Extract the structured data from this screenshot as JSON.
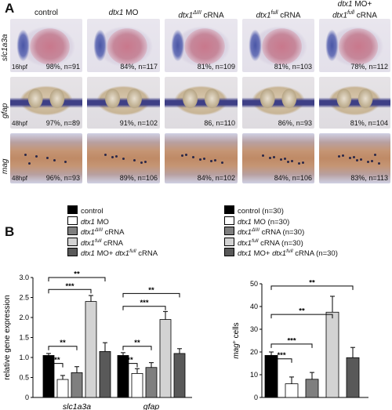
{
  "panel_a": {
    "label": "A",
    "columns": [
      {
        "parts": [
          {
            "t": "control",
            "i": false
          }
        ]
      },
      {
        "parts": [
          {
            "t": "dtx1",
            "i": true
          },
          {
            "t": " MO",
            "i": false
          }
        ]
      },
      {
        "parts": [
          {
            "t": "dtx1",
            "i": true
          },
          {
            "t": "ΔIII",
            "i": true,
            "sup": true
          },
          {
            "t": " cRNA",
            "i": false
          }
        ]
      },
      {
        "parts": [
          {
            "t": "dtx1",
            "i": true
          },
          {
            "t": "full",
            "i": true,
            "sup": true
          },
          {
            "t": " cRNA",
            "i": false
          }
        ]
      },
      {
        "parts": [
          {
            "t": "dtx1",
            "i": true
          },
          {
            "t": " MO+",
            "i": false
          },
          {
            "br": true
          },
          {
            "t": "dtx1",
            "i": true
          },
          {
            "t": "full",
            "i": true,
            "sup": true
          },
          {
            "t": " cRNA",
            "i": false
          }
        ]
      }
    ],
    "rows": [
      {
        "gene": "slc1a3a",
        "stage": "16hpf",
        "pcts": [
          "98%, n=91",
          "84%, n=117",
          "81%, n=109",
          "81%, n=103",
          "78%, n=112"
        ]
      },
      {
        "gene": "gfap",
        "stage": "48hpf",
        "pcts": [
          "97%, n=89",
          "91%, n=102",
          "86, n=110",
          "86%, n=93",
          "81%, n=104"
        ]
      },
      {
        "gene": "mag",
        "stage": "48hpf",
        "pcts": [
          "96%, n=93",
          "89%, n=106",
          "84%, n=102",
          "84%, n=106",
          "83%, n=113"
        ]
      }
    ]
  },
  "panel_b": {
    "label": "B",
    "legend_left": [
      {
        "parts": [
          {
            "t": "control"
          }
        ],
        "color": "#000000"
      },
      {
        "parts": [
          {
            "t": "dtx1",
            "i": true
          },
          {
            "t": " MO"
          }
        ],
        "color": "#ffffff"
      },
      {
        "parts": [
          {
            "t": "dtx1",
            "i": true
          },
          {
            "t": "ΔIII",
            "i": true,
            "sup": true
          },
          {
            "t": " cRNA"
          }
        ],
        "color": "#7f7f7f"
      },
      {
        "parts": [
          {
            "t": "dtx1",
            "i": true
          },
          {
            "t": "full",
            "i": true,
            "sup": true
          },
          {
            "t": " cRNA"
          }
        ],
        "color": "#d3d3d3"
      },
      {
        "parts": [
          {
            "t": "dtx1",
            "i": true
          },
          {
            "t": " MO+ "
          },
          {
            "t": "dtx1",
            "i": true
          },
          {
            "t": "full",
            "i": true,
            "sup": true
          },
          {
            "t": " cRNA"
          }
        ],
        "color": "#595959"
      }
    ],
    "legend_right": [
      {
        "parts": [
          {
            "t": "control (n=30)"
          }
        ],
        "color": "#000000"
      },
      {
        "parts": [
          {
            "t": "dtx1",
            "i": true
          },
          {
            "t": " MO (n=30)"
          }
        ],
        "color": "#ffffff"
      },
      {
        "parts": [
          {
            "t": "dtx1",
            "i": true
          },
          {
            "t": "ΔIII",
            "i": true,
            "sup": true
          },
          {
            "t": " cRNA (n=30)"
          }
        ],
        "color": "#7f7f7f"
      },
      {
        "parts": [
          {
            "t": "dtx1",
            "i": true
          },
          {
            "t": "full",
            "i": true,
            "sup": true
          },
          {
            "t": " cRNA (n=30)"
          }
        ],
        "color": "#d3d3d3"
      },
      {
        "parts": [
          {
            "t": "dtx1",
            "i": true
          },
          {
            "t": " MO+ "
          },
          {
            "t": "dtx1",
            "i": true
          },
          {
            "t": "full",
            "i": true,
            "sup": true
          },
          {
            "t": " cRNA (n=30)"
          }
        ],
        "color": "#595959"
      }
    ]
  },
  "chart_data": [
    {
      "type": "bar",
      "ylabel": "relative gene expression",
      "ylim": [
        0,
        3.0
      ],
      "yticks": [
        "0",
        "0.5",
        "1.0",
        "1.5",
        "2.0",
        "2.5",
        "3.0"
      ],
      "categories": [
        "slc1a3a",
        "gfap"
      ],
      "series": [
        {
          "color": "#000000",
          "values": [
            1.05,
            1.05
          ],
          "errors": [
            0.05,
            0.07
          ]
        },
        {
          "color": "#ffffff",
          "values": [
            0.45,
            0.6
          ],
          "errors": [
            0.1,
            0.12
          ]
        },
        {
          "color": "#7f7f7f",
          "values": [
            0.62,
            0.75
          ],
          "errors": [
            0.15,
            0.12
          ]
        },
        {
          "color": "#d3d3d3",
          "values": [
            2.4,
            1.95
          ],
          "errors": [
            0.15,
            0.2
          ]
        },
        {
          "color": "#595959",
          "values": [
            1.15,
            1.1
          ],
          "errors": [
            0.22,
            0.12
          ]
        }
      ],
      "significance": [
        {
          "cat": 0,
          "to": 1,
          "label": "***",
          "y": 0.85
        },
        {
          "cat": 0,
          "to": 2,
          "label": "**",
          "y": 1.28
        },
        {
          "cat": 0,
          "to": 3,
          "label": "***",
          "y": 2.7
        },
        {
          "cat": 0,
          "to": 4,
          "label": "**",
          "y": 3.0
        },
        {
          "cat": 1,
          "to": 1,
          "label": "**",
          "y": 0.85
        },
        {
          "cat": 1,
          "to": 2,
          "label": "**",
          "y": 1.28
        },
        {
          "cat": 1,
          "to": 3,
          "label": "***",
          "y": 2.28
        },
        {
          "cat": 1,
          "to": 4,
          "label": "**",
          "y": 2.6
        }
      ]
    },
    {
      "type": "bar",
      "ylabel": "mag+ cells",
      "ylabel_parts": [
        {
          "t": "mag",
          "i": true
        },
        {
          "t": "+",
          "sup": true
        },
        {
          "t": " cells"
        }
      ],
      "ylim": [
        0,
        50
      ],
      "yticks": [
        "0",
        "10",
        "20",
        "30",
        "40",
        "50"
      ],
      "categories": [
        ""
      ],
      "series": [
        {
          "color": "#000000",
          "values": [
            18.5
          ],
          "errors": [
            1.5
          ]
        },
        {
          "color": "#ffffff",
          "values": [
            6
          ],
          "errors": [
            3
          ]
        },
        {
          "color": "#7f7f7f",
          "values": [
            8
          ],
          "errors": [
            3
          ]
        },
        {
          "color": "#d3d3d3",
          "values": [
            37.5
          ],
          "errors": [
            7
          ]
        },
        {
          "color": "#595959",
          "values": [
            17.5
          ],
          "errors": [
            4.5
          ]
        }
      ],
      "significance": [
        {
          "cat": 0,
          "to": 1,
          "label": "***",
          "y": 17
        },
        {
          "cat": 0,
          "to": 2,
          "label": "***",
          "y": 23.5
        },
        {
          "cat": 0,
          "to": 3,
          "label": "**",
          "y": 36.5
        },
        {
          "cat": 0,
          "to": 4,
          "label": "**",
          "y": 49
        }
      ]
    }
  ]
}
